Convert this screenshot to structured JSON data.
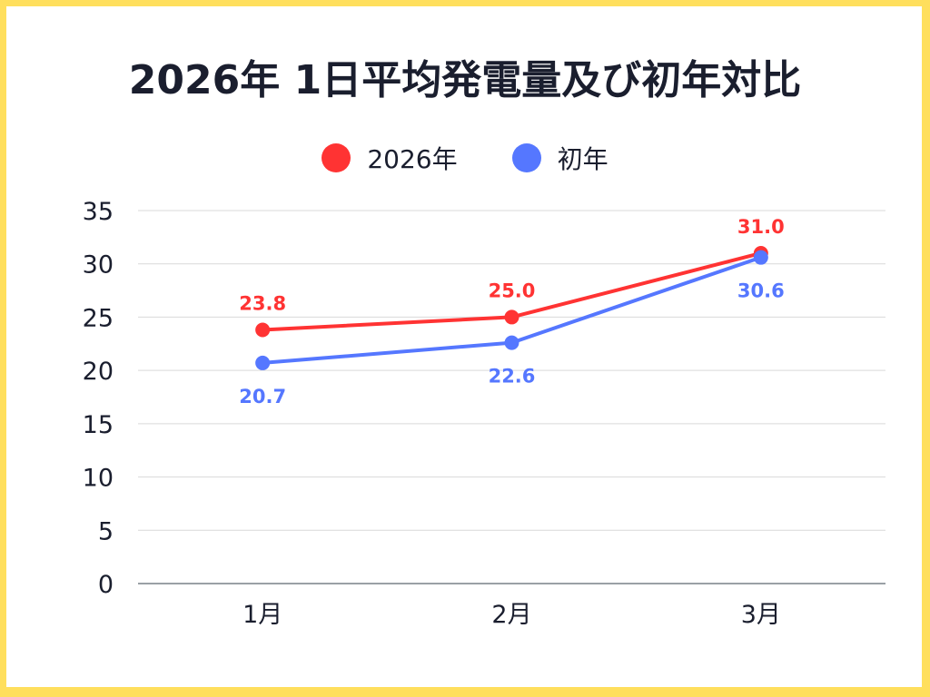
{
  "title": "2026年 1日平均発電量及び初年対比",
  "legend": [
    {
      "label": "2026年",
      "color": "#FF3333"
    },
    {
      "label": "初年",
      "color": "#5577FF"
    }
  ],
  "chart_data": {
    "type": "line",
    "title": "2026年 1日平均発電量及び初年対比",
    "xlabel": "",
    "ylabel": "",
    "categories": [
      "1月",
      "2月",
      "3月"
    ],
    "series": [
      {
        "name": "2026年",
        "color": "#FF3333",
        "values": [
          23.8,
          25.0,
          31.0
        ],
        "labels": [
          "23.8",
          "25.0",
          "31.0"
        ]
      },
      {
        "name": "初年",
        "color": "#5577FF",
        "values": [
          20.7,
          22.6,
          30.6
        ],
        "labels": [
          "20.7",
          "22.6",
          "30.6"
        ]
      }
    ],
    "ylim": [
      0,
      35
    ],
    "yticks": [
      0,
      5,
      10,
      15,
      20,
      25,
      30,
      35
    ],
    "grid": true,
    "legend_position": "top"
  }
}
